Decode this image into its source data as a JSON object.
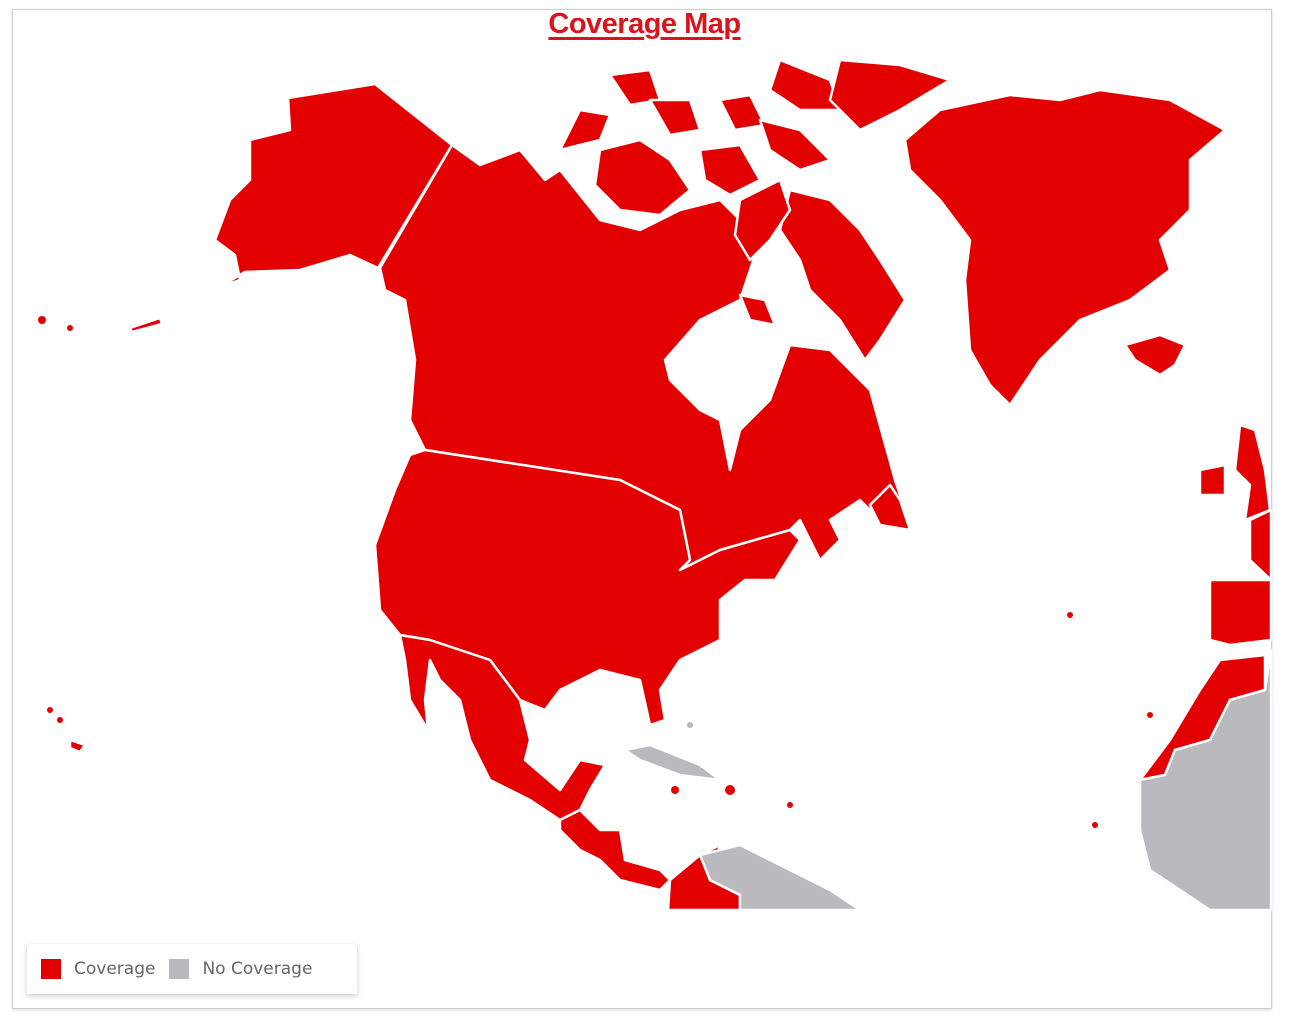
{
  "title": "Coverage Map",
  "colors": {
    "coverage": "#e30000",
    "no_coverage": "#b9b9be",
    "title": "#d9141c"
  },
  "legend": [
    {
      "label": "Coverage",
      "color": "#e30000"
    },
    {
      "label": "No Coverage",
      "color": "#b9b9be"
    }
  ],
  "regions": {
    "coverage": [
      "Alaska",
      "Canada",
      "United States",
      "Mexico",
      "Central America",
      "Colombia",
      "Greenland",
      "Iceland",
      "Canadian Arctic Islands",
      "United Kingdom",
      "Ireland",
      "France",
      "Spain",
      "Portugal",
      "Morocco",
      "Hawaii",
      "Caribbean Islands",
      "Canary Islands",
      "Azores",
      "Cape Verde"
    ],
    "no_coverage": [
      "Cuba",
      "Bahamas",
      "Venezuela",
      "West Africa"
    ]
  }
}
